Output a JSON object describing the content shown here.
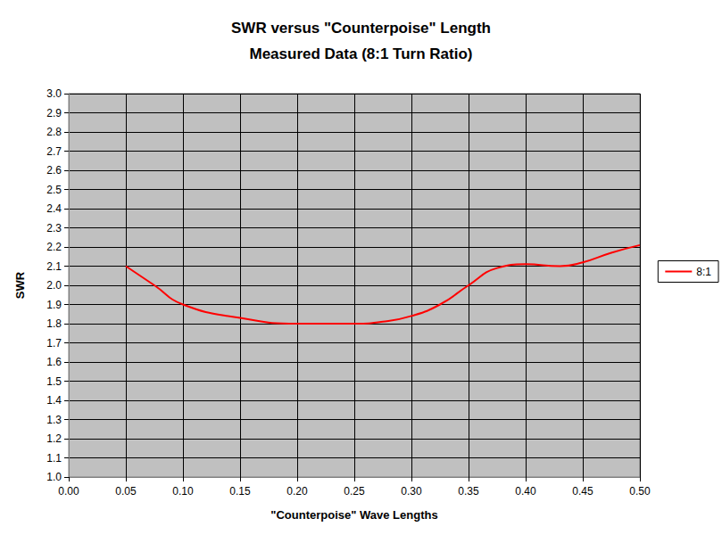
{
  "chart_data": {
    "type": "line",
    "title": "SWR versus \"Counterpoise\" Length",
    "subtitle": "Measured Data (8:1 Turn Ratio)",
    "x_label": "\"Counterpoise\" Wave Lengths",
    "y_label": "SWR",
    "series": [
      {
        "name": "8:1",
        "color": "#ff0000",
        "marker": "none",
        "line_style": "solid",
        "x": [
          0.05,
          0.075,
          0.1,
          0.15,
          0.2,
          0.25,
          0.275,
          0.3,
          0.325,
          0.35,
          0.375,
          0.4,
          0.43,
          0.45,
          0.475,
          0.5
        ],
        "values": [
          2.1,
          2.0,
          1.9,
          1.83,
          1.8,
          1.8,
          1.81,
          1.84,
          1.9,
          2.0,
          2.09,
          2.11,
          2.1,
          2.12,
          2.17,
          2.21
        ]
      }
    ],
    "xlim": [
      0,
      0.5
    ],
    "xticks": [
      {
        "value": 0,
        "label": "0.00"
      },
      {
        "value": 0.05,
        "label": "0.05"
      },
      {
        "value": 0.1,
        "label": "0.10"
      },
      {
        "value": 0.15,
        "label": "0.15"
      },
      {
        "value": 0.2,
        "label": "0.20"
      },
      {
        "value": 0.25,
        "label": "0.25"
      },
      {
        "value": 0.3,
        "label": "0.30"
      },
      {
        "value": 0.35,
        "label": "0.35"
      },
      {
        "value": 0.4,
        "label": "0.40"
      },
      {
        "value": 0.45,
        "label": "0.45"
      },
      {
        "value": 0.5,
        "label": "0.50"
      }
    ],
    "ylim": [
      1,
      3
    ],
    "yticks": [
      {
        "value": 1,
        "label": "1.0"
      },
      1.1,
      1.2,
      1.3,
      1.4,
      1.5,
      1.6,
      1.7,
      1.8,
      1.9,
      {
        "value": 2,
        "label": "2.0"
      },
      2.1,
      2.2,
      2.3,
      2.4,
      2.5,
      2.6,
      2.7,
      2.8,
      2.9,
      {
        "value": 3,
        "label": "3.0"
      }
    ],
    "grid": true,
    "legend": "right"
  }
}
